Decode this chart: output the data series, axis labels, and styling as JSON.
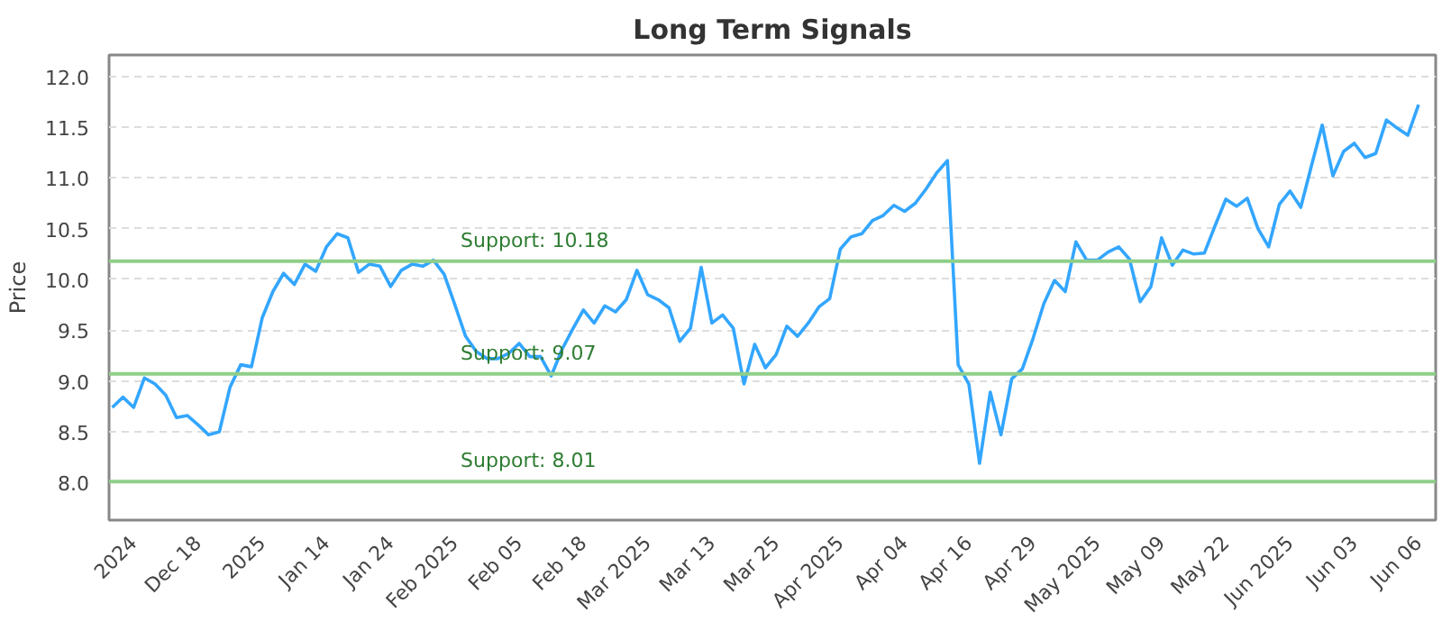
{
  "chart_data": {
    "type": "line",
    "title": "Long Term Signals",
    "ylabel": "Price",
    "categories": [
      null,
      null,
      "2024",
      null,
      null,
      null,
      null,
      null,
      "Dec 18",
      null,
      null,
      null,
      null,
      null,
      "2025",
      null,
      null,
      null,
      null,
      null,
      "Jan 14",
      null,
      null,
      null,
      null,
      null,
      "Jan 24",
      null,
      null,
      null,
      null,
      null,
      "Feb 2025",
      null,
      null,
      null,
      null,
      null,
      "Feb 05",
      null,
      null,
      null,
      null,
      null,
      "Feb 18",
      null,
      null,
      null,
      null,
      null,
      "Mar 2025",
      null,
      null,
      null,
      null,
      null,
      "Mar 13",
      null,
      null,
      null,
      null,
      null,
      "Mar 25",
      null,
      null,
      null,
      null,
      null,
      "Apr 2025",
      null,
      null,
      null,
      null,
      null,
      "Apr 04",
      null,
      null,
      null,
      null,
      null,
      "Apr 16",
      null,
      null,
      null,
      null,
      null,
      "Apr 29",
      null,
      null,
      null,
      null,
      null,
      "May 2025",
      null,
      null,
      null,
      null,
      null,
      "May 09",
      null,
      null,
      null,
      null,
      null,
      "May 22",
      null,
      null,
      null,
      null,
      null,
      "Jun 2025",
      null,
      null,
      null,
      null,
      null,
      "Jun 03",
      null,
      null,
      null,
      null,
      null,
      "Jun 06"
    ],
    "series": [
      {
        "color": "#33a6ff",
        "values": [
          8.74,
          8.84,
          8.74,
          9.03,
          8.97,
          8.86,
          8.64,
          8.66,
          8.57,
          8.47,
          8.5,
          8.94,
          9.16,
          9.14,
          9.62,
          9.88,
          10.06,
          9.95,
          10.15,
          10.08,
          10.32,
          10.45,
          10.41,
          10.07,
          10.15,
          10.13,
          9.93,
          10.09,
          10.15,
          10.13,
          10.19,
          10.05,
          9.75,
          9.44,
          9.29,
          9.22,
          9.22,
          9.27,
          9.37,
          9.24,
          9.24,
          9.05,
          9.31,
          9.51,
          9.7,
          9.57,
          9.74,
          9.68,
          9.8,
          10.09,
          9.85,
          9.8,
          9.72,
          9.39,
          9.52,
          10.12,
          9.57,
          9.65,
          9.52,
          8.97,
          9.36,
          9.13,
          9.26,
          9.54,
          9.44,
          9.57,
          9.73,
          9.81,
          10.3,
          10.42,
          10.45,
          10.58,
          10.63,
          10.73,
          10.67,
          10.75,
          10.89,
          11.05,
          11.17,
          9.16,
          8.97,
          8.19,
          8.89,
          8.47,
          9.02,
          9.12,
          9.42,
          9.76,
          9.99,
          9.88,
          10.37,
          10.19,
          10.19,
          10.27,
          10.32,
          10.2,
          9.78,
          9.93,
          10.41,
          10.14,
          10.29,
          10.25,
          10.26,
          10.53,
          10.79,
          10.72,
          10.8,
          10.5,
          10.32,
          10.74,
          10.87,
          10.71,
          11.12,
          11.52,
          11.02,
          11.26,
          11.34,
          11.2,
          11.24,
          11.57,
          11.49,
          11.42,
          11.72
        ]
      }
    ],
    "ylim": [
      7.63,
      12.21
    ],
    "yticks": [
      {
        "value": 8,
        "label": "8.0"
      },
      8.5,
      {
        "value": 9,
        "label": "9.0"
      },
      9.5,
      {
        "value": 10,
        "label": "10.0"
      },
      10.5,
      {
        "value": 11,
        "label": "11.0"
      },
      11.5,
      {
        "value": 12,
        "label": "12.0"
      }
    ],
    "ref_lines": [
      {
        "axis": "y",
        "value": 10.18,
        "label": "Support: 10.18",
        "color": "#8fcf88"
      },
      {
        "axis": "y",
        "value": 9.07,
        "label": "Support: 9.07",
        "color": "#8fcf88"
      },
      {
        "axis": "y",
        "value": 8.01,
        "label": "Support: 8.01",
        "color": "#8fcf88"
      }
    ],
    "grid": "y",
    "marker": "none",
    "line_style": "solid"
  }
}
